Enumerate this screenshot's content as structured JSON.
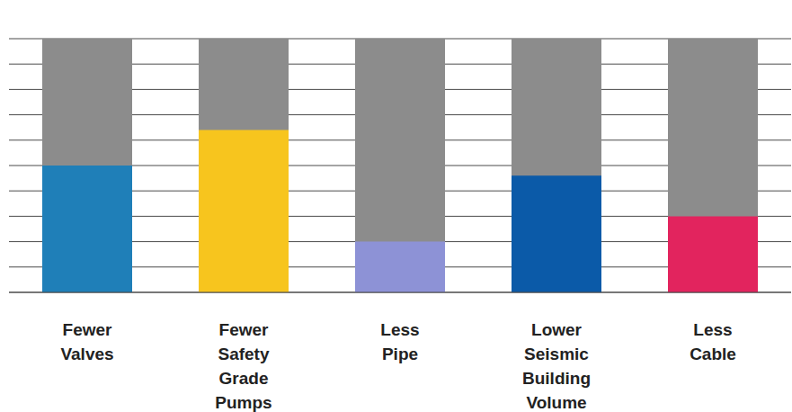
{
  "chart_data": {
    "type": "bar",
    "categories": [
      "Fewer Valves",
      "Fewer Safety Grade Pumps",
      "Less Pipe",
      "Lower Seismic Building Volume",
      "Less Cable"
    ],
    "series": [
      {
        "color": "#8c8c8c",
        "values": [
          100,
          100,
          100,
          100,
          100
        ]
      },
      {
        "colors": [
          "#1f7fb8",
          "#f7c51e",
          "#8d92d6",
          "#0b5aa8",
          "#e2245e"
        ],
        "values": [
          50,
          64,
          20,
          46,
          30
        ]
      }
    ],
    "ylim": [
      0,
      100
    ],
    "yticks": [
      0,
      10,
      20,
      30,
      40,
      50,
      60,
      70,
      80,
      90,
      100
    ],
    "grid": true,
    "tick_labels": false
  }
}
